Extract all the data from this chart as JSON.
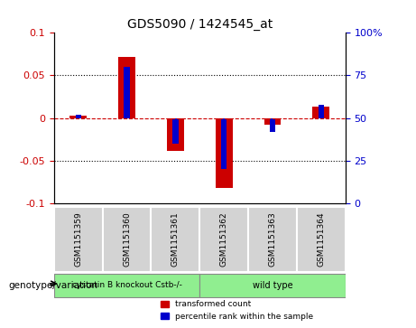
{
  "title": "GDS5090 / 1424545_at",
  "samples": [
    "GSM1151359",
    "GSM1151360",
    "GSM1151361",
    "GSM1151362",
    "GSM1151363",
    "GSM1151364"
  ],
  "red_values": [
    0.003,
    0.072,
    -0.038,
    -0.082,
    -0.008,
    0.013
  ],
  "blue_values_pct": [
    52,
    80,
    35,
    20,
    42,
    58
  ],
  "ylim_left": [
    -0.1,
    0.1
  ],
  "ylim_right": [
    0,
    100
  ],
  "yticks_left": [
    -0.1,
    -0.05,
    0.0,
    0.05,
    0.1
  ],
  "yticks_right": [
    0,
    25,
    50,
    75,
    100
  ],
  "group1_label": "cystatin B knockout Cstb-/-",
  "group2_label": "wild type",
  "group1_indices": [
    0,
    1,
    2
  ],
  "group2_indices": [
    3,
    4,
    5
  ],
  "group1_color": "#90EE90",
  "group2_color": "#90EE90",
  "bar_color_red": "#CC0000",
  "bar_color_blue": "#0000CC",
  "xlabel_label": "genotype/variation",
  "legend1": "transformed count",
  "legend2": "percentile rank within the sample",
  "hline_color": "#CC0000",
  "dot_line_color": "black",
  "background_plot": "white",
  "tick_label_color_left": "#CC0000",
  "tick_label_color_right": "#0000CC",
  "bar_width": 0.35
}
